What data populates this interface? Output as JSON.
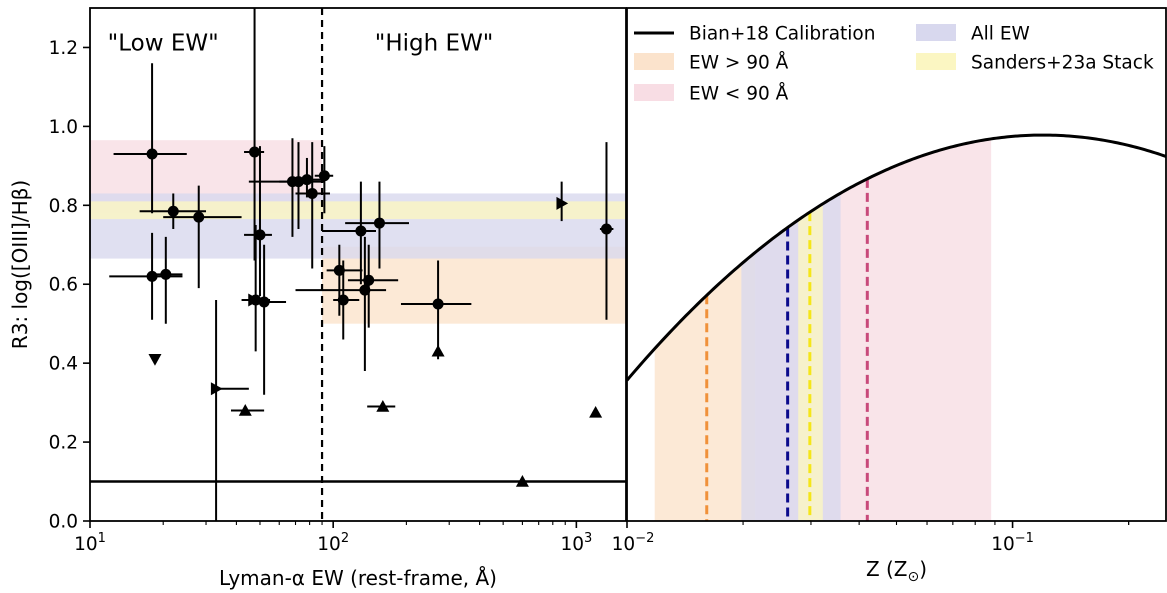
{
  "colors": {
    "orange": "#f0913a",
    "pink": "#c8497a",
    "navy": "#0a0a8c",
    "yellow": "#f5e617",
    "band_orange": "#fbe3cc",
    "band_pink": "#f8dde4",
    "band_purple": "#d8d8ee",
    "band_yellow": "#fbf6c2"
  },
  "chart_data": [
    {
      "type": "scatter",
      "xlabel": "Lyman-α EW (rest-frame, Å)",
      "ylabel": "R3: log([OIII]/Hβ)",
      "xscale": "log",
      "xlim": [
        10,
        1600
      ],
      "ylim": [
        0.0,
        1.3
      ],
      "x_tick_labels": [
        {
          "v": 10,
          "base": "10",
          "exp": "1"
        },
        {
          "v": 100,
          "base": "10",
          "exp": "2"
        },
        {
          "v": 1000,
          "base": "10",
          "exp": "3"
        }
      ],
      "y_ticks": [
        0.0,
        0.2,
        0.4,
        0.6,
        0.8,
        1.0,
        1.2
      ],
      "y_tick_labels": [
        "0.0",
        "0.2",
        "0.4",
        "0.6",
        "0.8",
        "1.0",
        "1.2"
      ],
      "grid": false,
      "annotations": [
        {
          "text": "\"Low EW\"",
          "color": "#c8497a",
          "x": 20,
          "y": 1.2
        },
        {
          "text": "\"High EW\"",
          "color": "#f0913a",
          "x": 260,
          "y": 1.2
        }
      ],
      "vline": {
        "x": 90,
        "style": "dashed"
      },
      "hline": {
        "y": 0.1
      },
      "bands": [
        {
          "name": "EW < 90 Å",
          "xmin": 10,
          "xmax": 90,
          "ymin": 0.78,
          "ymax": 0.965,
          "color": "#f8dde4"
        },
        {
          "name": "EW > 90 Å",
          "xmin": 90,
          "xmax": 1600,
          "ymin": 0.5,
          "ymax": 0.695,
          "color": "#fbe3cc"
        },
        {
          "name": "All EW",
          "xmin": 10,
          "xmax": 1600,
          "ymin": 0.665,
          "ymax": 0.83,
          "color": "#d8d8ee"
        },
        {
          "name": "Sanders+23a Stack",
          "xmin": 10,
          "xmax": 1600,
          "ymin": 0.765,
          "ymax": 0.81,
          "color": "#fbf6c2"
        }
      ],
      "points": [
        {
          "x": 18,
          "y": 0.93,
          "xlo": 12.5,
          "xhi": 25,
          "ylo": 0.78,
          "yhi": 1.16
        },
        {
          "x": 18,
          "y": 0.62,
          "xlo": 12,
          "xhi": 24,
          "ylo": 0.51,
          "yhi": 0.73
        },
        {
          "x": 20.5,
          "y": 0.625,
          "xlo": 17.5,
          "xhi": 24,
          "ylo": 0.5,
          "yhi": 0.72
        },
        {
          "x": 22,
          "y": 0.785,
          "xlo": 16,
          "xhi": 30,
          "ylo": 0.74,
          "yhi": 0.83
        },
        {
          "x": 28,
          "y": 0.77,
          "xlo": 20,
          "xhi": 42,
          "ylo": 0.59,
          "yhi": 0.85
        },
        {
          "x": 47.5,
          "y": 0.935,
          "xlo": 43,
          "xhi": 52,
          "ylo": 0.66,
          "yhi": 1.3
        },
        {
          "x": 50,
          "y": 0.725,
          "xlo": 43,
          "xhi": 56,
          "ylo": 0.57,
          "yhi": 0.95
        },
        {
          "x": 48,
          "y": 0.56,
          "xlo": 42,
          "xhi": 55,
          "ylo": 0.43,
          "yhi": 0.75
        },
        {
          "x": 52,
          "y": 0.555,
          "xlo": 45,
          "xhi": 64,
          "ylo": 0.32,
          "yhi": 0.7
        },
        {
          "x": 68,
          "y": 0.86,
          "xlo": 60,
          "xhi": 77,
          "ylo": 0.72,
          "yhi": 0.97
        },
        {
          "x": 72,
          "y": 0.86,
          "xlo": 45,
          "xhi": 92,
          "ylo": 0.74,
          "yhi": 0.96
        },
        {
          "x": 78,
          "y": 0.865,
          "xlo": 66,
          "xhi": 92,
          "ylo": 0.82,
          "yhi": 0.92
        },
        {
          "x": 82,
          "y": 0.83,
          "xlo": 70,
          "xhi": 97,
          "ylo": 0.64,
          "yhi": 0.96
        },
        {
          "x": 92,
          "y": 0.875,
          "xlo": 84,
          "xhi": 100,
          "ylo": 0.78,
          "yhi": 0.95
        },
        {
          "x": 106,
          "y": 0.635,
          "xlo": 94,
          "xhi": 132,
          "ylo": 0.52,
          "yhi": 0.7
        },
        {
          "x": 110,
          "y": 0.56,
          "xlo": 100,
          "xhi": 128,
          "ylo": 0.46,
          "yhi": 0.66
        },
        {
          "x": 130,
          "y": 0.735,
          "xlo": 90,
          "xhi": 150,
          "ylo": 0.6,
          "yhi": 0.86
        },
        {
          "x": 135,
          "y": 0.585,
          "xlo": 70,
          "xhi": 165,
          "ylo": 0.38,
          "yhi": 0.72
        },
        {
          "x": 140,
          "y": 0.61,
          "xlo": 115,
          "xhi": 185,
          "ylo": 0.49,
          "yhi": 0.7
        },
        {
          "x": 155,
          "y": 0.755,
          "xlo": 112,
          "xhi": 205,
          "ylo": 0.64,
          "yhi": 0.86
        },
        {
          "x": 270,
          "y": 0.55,
          "xlo": 190,
          "xhi": 370,
          "ylo": 0.41,
          "yhi": 0.66
        },
        {
          "x": 1330,
          "y": 0.74,
          "xlo": 1250,
          "xhi": 1420,
          "ylo": 0.51,
          "yhi": 0.96
        }
      ],
      "limits": [
        {
          "x": 18.5,
          "y": 0.41,
          "marker": "triangle-down"
        },
        {
          "x": 33,
          "y": 0.335,
          "marker": "triangle-right",
          "ylo": 0.0,
          "yhi": 0.56,
          "xlo": 33,
          "xhi": 45
        },
        {
          "x": 43.5,
          "y": 0.28,
          "marker": "triangle-up",
          "xlo": 38,
          "xhi": 52
        },
        {
          "x": 47,
          "y": 0.56,
          "marker": "triangle-right"
        },
        {
          "x": 160,
          "y": 0.29,
          "marker": "triangle-up",
          "xlo": 138,
          "xhi": 180
        },
        {
          "x": 270,
          "y": 0.43,
          "marker": "triangle-up"
        },
        {
          "x": 600,
          "y": 0.1,
          "marker": "triangle-up"
        },
        {
          "x": 870,
          "y": 0.805,
          "marker": "triangle-right",
          "ylo": 0.76,
          "yhi": 0.86
        },
        {
          "x": 1200,
          "y": 0.275,
          "marker": "triangle-up"
        }
      ]
    },
    {
      "type": "line",
      "xlabel": "Z (Z",
      "xlabel_sub": "⊙",
      "xlabel_close": ")",
      "xscale": "log",
      "xlim": [
        0.01,
        0.25
      ],
      "ylim": [
        0.0,
        1.3
      ],
      "x_tick_labels": [
        {
          "v": 0.01,
          "base": "10",
          "exp": "−2"
        },
        {
          "v": 0.1,
          "base": "10",
          "exp": "−1"
        }
      ],
      "series": [
        {
          "name": "Bian+18 Calibration",
          "color": "#000000",
          "curve": "R3 = 0.978 - 0.5335*(log10(Z/0.12))^2",
          "peak": {
            "x": 0.12,
            "y": 0.978
          }
        }
      ],
      "bands": [
        {
          "name": "EW > 90 Å",
          "xmin": 0.0118,
          "xmax": 0.0215,
          "color": "#fbe3cc"
        },
        {
          "name": "EW < 90 Å",
          "xmin": 0.0215,
          "xmax": 0.088,
          "color": "#f8dde4"
        },
        {
          "name": "All EW",
          "xmin": 0.0198,
          "xmax": 0.0358,
          "color": "#d8d8ee"
        },
        {
          "name": "Sanders+23a Stack",
          "xmin": 0.0278,
          "xmax": 0.0322,
          "color": "#fbf6c2"
        }
      ],
      "vlines": [
        {
          "x": 0.0161,
          "color": "#f0913a",
          "label": "EW > 90 Å"
        },
        {
          "x": 0.0261,
          "color": "#0a0a8c",
          "label": "All EW"
        },
        {
          "x": 0.0298,
          "color": "#f5e617",
          "label": "Sanders+23a Stack"
        },
        {
          "x": 0.042,
          "color": "#c8497a",
          "label": "EW < 90 Å"
        }
      ],
      "legend": {
        "placement": "top",
        "entries": [
          {
            "label": "Bian+18 Calibration",
            "kind": "line",
            "color": "#000000"
          },
          {
            "label": "All EW",
            "kind": "patch",
            "color": "#d8d8ee"
          },
          {
            "label": "EW > 90 Å",
            "kind": "patch",
            "color": "#fbe3cc"
          },
          {
            "label": "Sanders+23a Stack",
            "kind": "patch",
            "color": "#fbf6c2"
          },
          {
            "label": "EW < 90 Å",
            "kind": "patch",
            "color": "#f8dde4"
          }
        ]
      }
    }
  ]
}
